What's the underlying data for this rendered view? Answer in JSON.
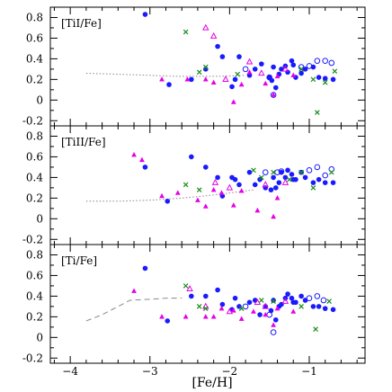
{
  "chart_data": {
    "type": "scatter",
    "xlabel": "[Fe/H]",
    "xlim": [
      -4.25,
      -0.3
    ],
    "ylim": [
      -0.25,
      0.9
    ],
    "x_ticks": [
      -4,
      -3,
      -2,
      -1
    ],
    "y_ticks": [
      -0.2,
      0,
      0.2,
      0.4,
      0.6,
      0.8
    ],
    "colors": {
      "blue": "#1a1aff",
      "magenta": "#e600e6",
      "green": "#1a8c1a",
      "model": "#888888"
    },
    "panels": [
      {
        "label": "[TiI/Fe]",
        "model": {
          "style": "dotted",
          "x": [
            -3.8,
            -3.4,
            -3.0,
            -2.7,
            -2.4,
            -2.1,
            -1.8
          ],
          "y": [
            0.26,
            0.25,
            0.24,
            0.23,
            0.23,
            0.23,
            0.24
          ]
        },
        "series": [
          {
            "marker": "filled-circle",
            "color": "blue",
            "x": [
              -3.06,
              -2.76,
              -2.48,
              -2.3,
              -2.15,
              -2.09,
              -1.97,
              -1.93,
              -1.88,
              -1.75,
              -1.68,
              -1.6,
              -1.5,
              -1.47,
              -1.45,
              -1.42,
              -1.38,
              -1.35,
              -1.3,
              -1.27,
              -1.22,
              -1.2,
              -1.17,
              -1.1,
              -1.05,
              -0.95,
              -0.88,
              -0.8,
              -0.7
            ],
            "y": [
              0.83,
              0.15,
              0.2,
              0.3,
              0.52,
              0.42,
              0.13,
              0.2,
              0.42,
              0.24,
              0.3,
              0.35,
              0.22,
              0.19,
              0.32,
              0.12,
              0.25,
              0.3,
              0.33,
              0.27,
              0.38,
              0.34,
              0.22,
              0.26,
              0.3,
              0.32,
              0.22,
              0.21,
              0.2
            ]
          },
          {
            "marker": "open-circle",
            "color": "blue",
            "x": [
              -1.8,
              -1.5,
              -1.45,
              -1.1,
              -1.0,
              -0.9,
              -0.8,
              -0.72
            ],
            "y": [
              0.3,
              0.22,
              0.05,
              0.32,
              0.33,
              0.38,
              0.38,
              0.36
            ]
          },
          {
            "marker": "filled-triangle",
            "color": "magenta",
            "x": [
              -2.85,
              -2.53,
              -2.3,
              -2.2,
              -1.95,
              -1.85,
              -1.75,
              -1.55,
              -1.45,
              -1.4,
              -1.2
            ],
            "y": [
              0.2,
              0.2,
              0.2,
              0.17,
              -0.02,
              0.15,
              0.27,
              0.16,
              0.05,
              0.23,
              0.24
            ]
          },
          {
            "marker": "open-triangle",
            "color": "magenta",
            "x": [
              -2.3,
              -2.2,
              -2.05,
              -1.75,
              -1.6,
              -1.3
            ],
            "y": [
              0.7,
              0.62,
              0.2,
              0.37,
              0.26,
              0.3
            ]
          },
          {
            "marker": "cross",
            "color": "green",
            "x": [
              -2.55,
              -2.38,
              -2.3,
              -1.9,
              -1.1,
              -0.95,
              -0.9,
              -0.8,
              -0.68
            ],
            "y": [
              0.66,
              0.27,
              0.32,
              0.25,
              0.3,
              0.2,
              -0.12,
              0.17,
              0.28
            ]
          }
        ]
      },
      {
        "label": "[TiII/Fe]",
        "model": {
          "style": "dotted",
          "x": [
            -3.8,
            -3.4,
            -3.0,
            -2.6,
            -2.2,
            -1.9,
            -1.7
          ],
          "y": [
            0.17,
            0.17,
            0.18,
            0.2,
            0.23,
            0.26,
            0.28
          ]
        },
        "series": [
          {
            "marker": "filled-circle",
            "color": "blue",
            "x": [
              -3.06,
              -2.78,
              -2.48,
              -2.3,
              -2.15,
              -2.09,
              -1.97,
              -1.93,
              -1.88,
              -1.75,
              -1.68,
              -1.62,
              -1.55,
              -1.48,
              -1.45,
              -1.42,
              -1.38,
              -1.35,
              -1.3,
              -1.27,
              -1.22,
              -1.2,
              -1.17,
              -1.1,
              -1.05,
              -0.95,
              -0.88,
              -0.8,
              -0.7
            ],
            "y": [
              0.5,
              0.17,
              0.6,
              0.5,
              0.4,
              0.22,
              0.4,
              0.38,
              0.33,
              0.45,
              0.33,
              0.38,
              0.3,
              0.28,
              0.4,
              0.3,
              0.35,
              0.45,
              0.4,
              0.47,
              0.43,
              0.38,
              0.38,
              0.45,
              0.4,
              0.35,
              0.38,
              0.35,
              0.35
            ]
          },
          {
            "marker": "open-circle",
            "color": "blue",
            "x": [
              -1.55,
              -1.4,
              -1.35,
              -1.0,
              -0.9,
              -0.8,
              -0.72
            ],
            "y": [
              0.45,
              0.45,
              0.46,
              0.47,
              0.5,
              0.42,
              0.48
            ]
          },
          {
            "marker": "filled-triangle",
            "color": "magenta",
            "x": [
              -3.2,
              -3.1,
              -2.85,
              -2.65,
              -2.4,
              -2.3,
              -2.2,
              -2.1,
              -1.95,
              -1.85,
              -1.65,
              -1.45,
              -1.4
            ],
            "y": [
              0.62,
              0.57,
              0.22,
              0.25,
              0.18,
              0.12,
              0.28,
              0.25,
              0.13,
              0.27,
              0.08,
              0.02,
              0.2
            ]
          },
          {
            "marker": "open-triangle",
            "color": "magenta",
            "x": [
              -2.18,
              -2.0,
              -1.55,
              -1.3
            ],
            "y": [
              0.35,
              0.3,
              0.33,
              0.35
            ]
          },
          {
            "marker": "cross",
            "color": "green",
            "x": [
              -2.55,
              -2.38,
              -1.7,
              -1.6,
              -1.45,
              -1.25,
              -1.1,
              -0.95,
              -0.72
            ],
            "y": [
              0.33,
              0.28,
              0.47,
              0.4,
              0.45,
              0.38,
              0.45,
              0.3,
              0.45
            ]
          }
        ]
      },
      {
        "label": "[Ti/Fe]",
        "model": {
          "style": "dashed",
          "x": [
            -3.8,
            -3.6,
            -3.4,
            -3.25,
            -3.0,
            -2.8,
            -2.6
          ],
          "y": [
            0.16,
            0.22,
            0.3,
            0.36,
            0.37,
            0.38,
            0.38
          ]
        },
        "series": [
          {
            "marker": "filled-circle",
            "color": "blue",
            "x": [
              -3.06,
              -2.78,
              -2.48,
              -2.3,
              -2.15,
              -2.09,
              -1.97,
              -1.93,
              -1.88,
              -1.75,
              -1.68,
              -1.62,
              -1.55,
              -1.48,
              -1.45,
              -1.42,
              -1.38,
              -1.35,
              -1.3,
              -1.27,
              -1.22,
              -1.2,
              -1.17,
              -1.1,
              -1.05,
              -0.95,
              -0.88,
              -0.8,
              -0.7
            ],
            "y": [
              0.67,
              0.16,
              0.4,
              0.4,
              0.46,
              0.32,
              0.27,
              0.38,
              0.3,
              0.34,
              0.36,
              0.22,
              0.3,
              0.26,
              0.36,
              0.17,
              0.3,
              0.32,
              0.38,
              0.42,
              0.38,
              0.34,
              0.34,
              0.4,
              0.36,
              0.3,
              0.3,
              0.28,
              0.27
            ]
          },
          {
            "marker": "open-circle",
            "color": "blue",
            "x": [
              -1.8,
              -1.5,
              -1.45,
              -1.0,
              -0.9,
              -0.82
            ],
            "y": [
              0.3,
              0.22,
              0.05,
              0.38,
              0.4,
              0.36
            ]
          },
          {
            "marker": "filled-triangle",
            "color": "magenta",
            "x": [
              -3.2,
              -2.85,
              -2.55,
              -2.3,
              -2.2,
              -2.1,
              -1.95,
              -1.85,
              -1.7,
              -1.55,
              -1.45,
              -1.4,
              -1.2
            ],
            "y": [
              0.45,
              0.2,
              0.2,
              0.2,
              0.2,
              0.28,
              0.26,
              0.18,
              0.25,
              0.22,
              0.12,
              0.28,
              0.25
            ]
          },
          {
            "marker": "open-triangle",
            "color": "magenta",
            "x": [
              -2.5,
              -2.3,
              -2.0,
              -1.65,
              -1.55,
              -1.3
            ],
            "y": [
              0.47,
              0.3,
              0.25,
              0.34,
              0.3,
              0.35
            ]
          },
          {
            "marker": "cross",
            "color": "green",
            "x": [
              -2.55,
              -2.38,
              -2.3,
              -1.85,
              -1.6,
              -1.45,
              -1.1,
              -0.92,
              -0.75
            ],
            "y": [
              0.5,
              0.3,
              0.28,
              0.28,
              0.36,
              0.35,
              0.3,
              0.08,
              0.35
            ]
          }
        ]
      }
    ]
  }
}
